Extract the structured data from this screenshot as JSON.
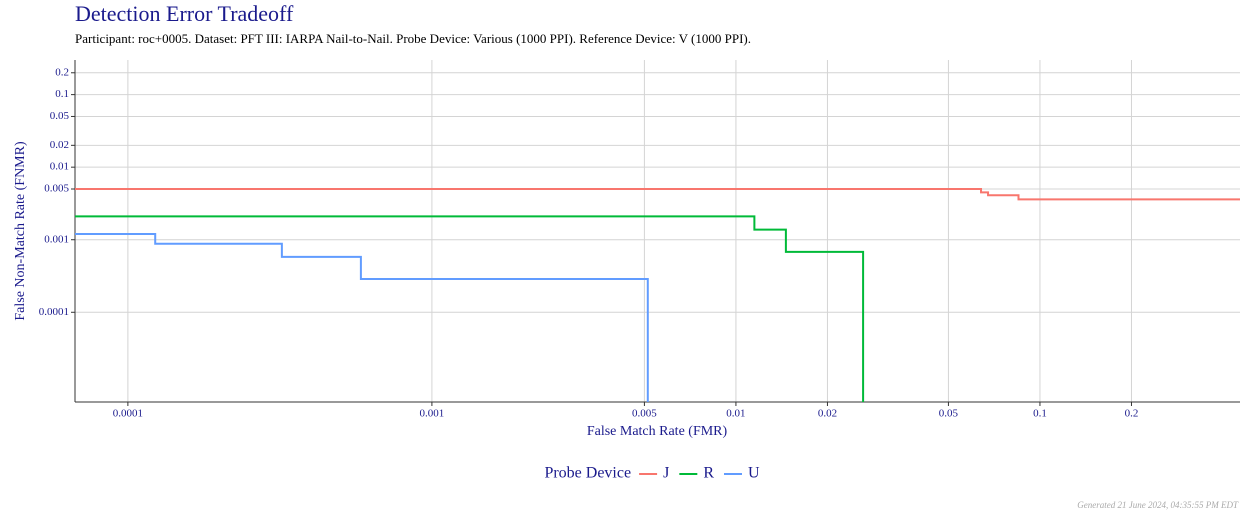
{
  "chart_data": {
    "type": "line",
    "title": "Detection Error Tradeoff",
    "subtitle": "Participant: roc+0005. Dataset: PFT III: IARPA Nail-to-Nail. Probe Device: Various (1000 PPI). Reference Device: V (1000 PPI).",
    "x_label": "False Match Rate (FMR)",
    "y_label": "False Non-Match Rate (FNMR)",
    "log_x": true,
    "log_y": true,
    "grid": true,
    "legend_position": "bottom",
    "legend_title": "Probe Device",
    "xlim": [
      6.7e-05,
      0.455
    ],
    "ylim": [
      5.8e-06,
      0.3
    ],
    "xticks": [
      0.0001,
      0.001,
      0.005,
      0.01,
      0.02,
      0.05,
      0.1,
      0.2
    ],
    "yticks": [
      0.0001,
      0.001,
      0.005,
      0.01,
      0.02,
      0.05,
      0.1,
      0.2
    ],
    "series": [
      {
        "name": "J",
        "color": "#F8766D",
        "x": [
          6.7e-05,
          0.064,
          0.064,
          0.0675,
          0.0675,
          0.085,
          0.085,
          0.455
        ],
        "values": [
          0.005,
          0.005,
          0.0045,
          0.0045,
          0.0041,
          0.0041,
          0.0036,
          0.0036
        ]
      },
      {
        "name": "R",
        "color": "#00BA38",
        "x": [
          6.7e-05,
          0.0115,
          0.0115,
          0.0146,
          0.0146,
          0.0262,
          0.0262
        ],
        "values": [
          0.0021,
          0.0021,
          0.00138,
          0.00138,
          0.00068,
          0.00068,
          5.8e-06
        ]
      },
      {
        "name": "U",
        "color": "#619CFF",
        "x": [
          6.7e-05,
          0.000123,
          0.000123,
          0.000321,
          0.000321,
          0.000584,
          0.000584,
          0.00513,
          0.00513
        ],
        "values": [
          0.0012,
          0.0012,
          0.00088,
          0.00088,
          0.00058,
          0.00058,
          0.000287,
          0.000287,
          5.8e-06
        ]
      }
    ],
    "footnote": "Generated 21 June 2024, 04:35:55 PM EDT"
  }
}
